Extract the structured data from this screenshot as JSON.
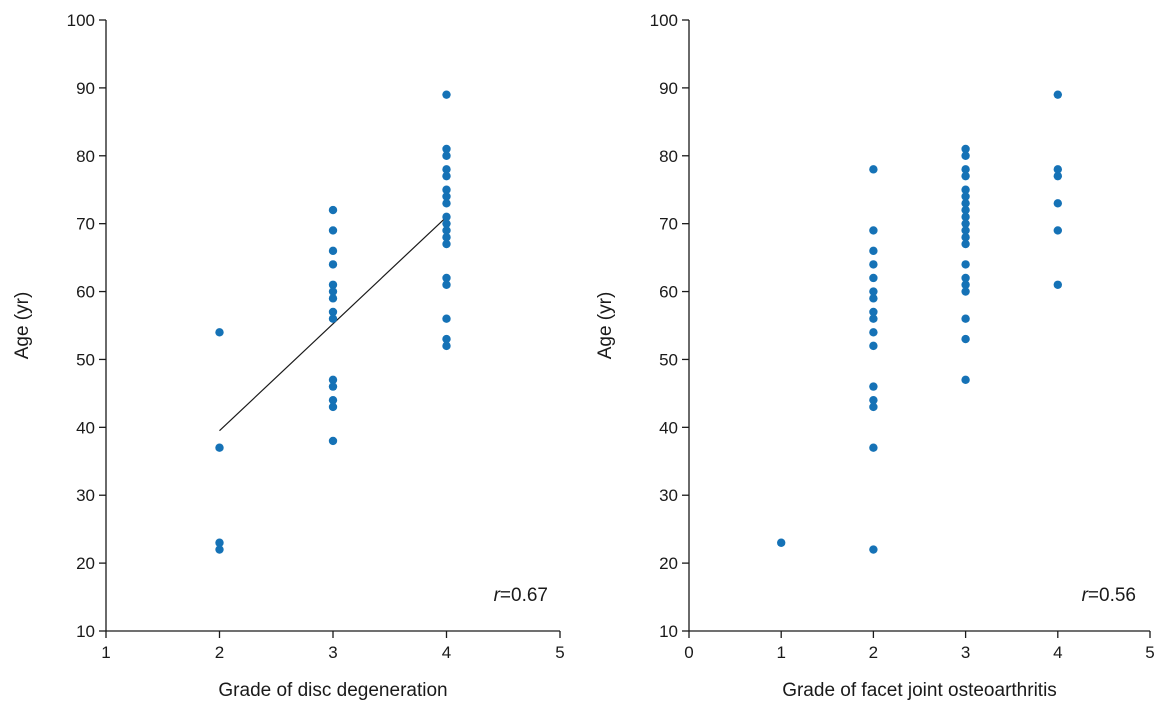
{
  "chart_data": [
    {
      "type": "scatter",
      "xlabel": "Grade of disc degeneration",
      "ylabel": "Age (yr)",
      "xlim": [
        1,
        5
      ],
      "ylim": [
        10,
        100
      ],
      "xticks": [
        1,
        2,
        3,
        4,
        5
      ],
      "yticks": [
        10,
        20,
        30,
        40,
        50,
        60,
        70,
        80,
        90,
        100
      ],
      "grid": false,
      "annotation": {
        "italic": "r",
        "text": "=0.67"
      },
      "trendline": {
        "x": [
          2,
          4
        ],
        "y": [
          39.5,
          71
        ]
      },
      "series": [
        {
          "color": "#1572b6",
          "points": [
            [
              2,
              54
            ],
            [
              2,
              37
            ],
            [
              2,
              23
            ],
            [
              2,
              22
            ],
            [
              3,
              72
            ],
            [
              3,
              69
            ],
            [
              3,
              66
            ],
            [
              3,
              64
            ],
            [
              3,
              61
            ],
            [
              3,
              60
            ],
            [
              3,
              59
            ],
            [
              3,
              57
            ],
            [
              3,
              56
            ],
            [
              3,
              47
            ],
            [
              3,
              46
            ],
            [
              3,
              44
            ],
            [
              3,
              43
            ],
            [
              3,
              38
            ],
            [
              4,
              89
            ],
            [
              4,
              81
            ],
            [
              4,
              80
            ],
            [
              4,
              78
            ],
            [
              4,
              77
            ],
            [
              4,
              75
            ],
            [
              4,
              74
            ],
            [
              4,
              73
            ],
            [
              4,
              71
            ],
            [
              4,
              70
            ],
            [
              4,
              69
            ],
            [
              4,
              68
            ],
            [
              4,
              67
            ],
            [
              4,
              62
            ],
            [
              4,
              61
            ],
            [
              4,
              56
            ],
            [
              4,
              53
            ],
            [
              4,
              52
            ]
          ]
        }
      ]
    },
    {
      "type": "scatter",
      "xlabel": "Grade of  facet joint osteoarthritis",
      "ylabel": "Age (yr)",
      "xlim": [
        0,
        5
      ],
      "ylim": [
        10,
        100
      ],
      "xticks": [
        0,
        1,
        2,
        3,
        4,
        5
      ],
      "yticks": [
        10,
        20,
        30,
        40,
        50,
        60,
        70,
        80,
        90,
        100
      ],
      "grid": false,
      "annotation": {
        "italic": "r",
        "text": "=0.56"
      },
      "series": [
        {
          "color": "#1572b6",
          "points": [
            [
              1,
              23
            ],
            [
              2,
              78
            ],
            [
              2,
              69
            ],
            [
              2,
              66
            ],
            [
              2,
              64
            ],
            [
              2,
              62
            ],
            [
              2,
              60
            ],
            [
              2,
              59
            ],
            [
              2,
              57
            ],
            [
              2,
              56
            ],
            [
              2,
              54
            ],
            [
              2,
              52
            ],
            [
              2,
              46
            ],
            [
              2,
              44
            ],
            [
              2,
              43
            ],
            [
              2,
              37
            ],
            [
              2,
              22
            ],
            [
              3,
              81
            ],
            [
              3,
              80
            ],
            [
              3,
              78
            ],
            [
              3,
              77
            ],
            [
              3,
              75
            ],
            [
              3,
              74
            ],
            [
              3,
              73
            ],
            [
              3,
              72
            ],
            [
              3,
              71
            ],
            [
              3,
              70
            ],
            [
              3,
              69
            ],
            [
              3,
              68
            ],
            [
              3,
              67
            ],
            [
              3,
              64
            ],
            [
              3,
              62
            ],
            [
              3,
              61
            ],
            [
              3,
              60
            ],
            [
              3,
              56
            ],
            [
              3,
              53
            ],
            [
              3,
              47
            ],
            [
              4,
              89
            ],
            [
              4,
              78
            ],
            [
              4,
              77
            ],
            [
              4,
              73
            ],
            [
              4,
              69
            ],
            [
              4,
              61
            ]
          ]
        }
      ]
    }
  ]
}
